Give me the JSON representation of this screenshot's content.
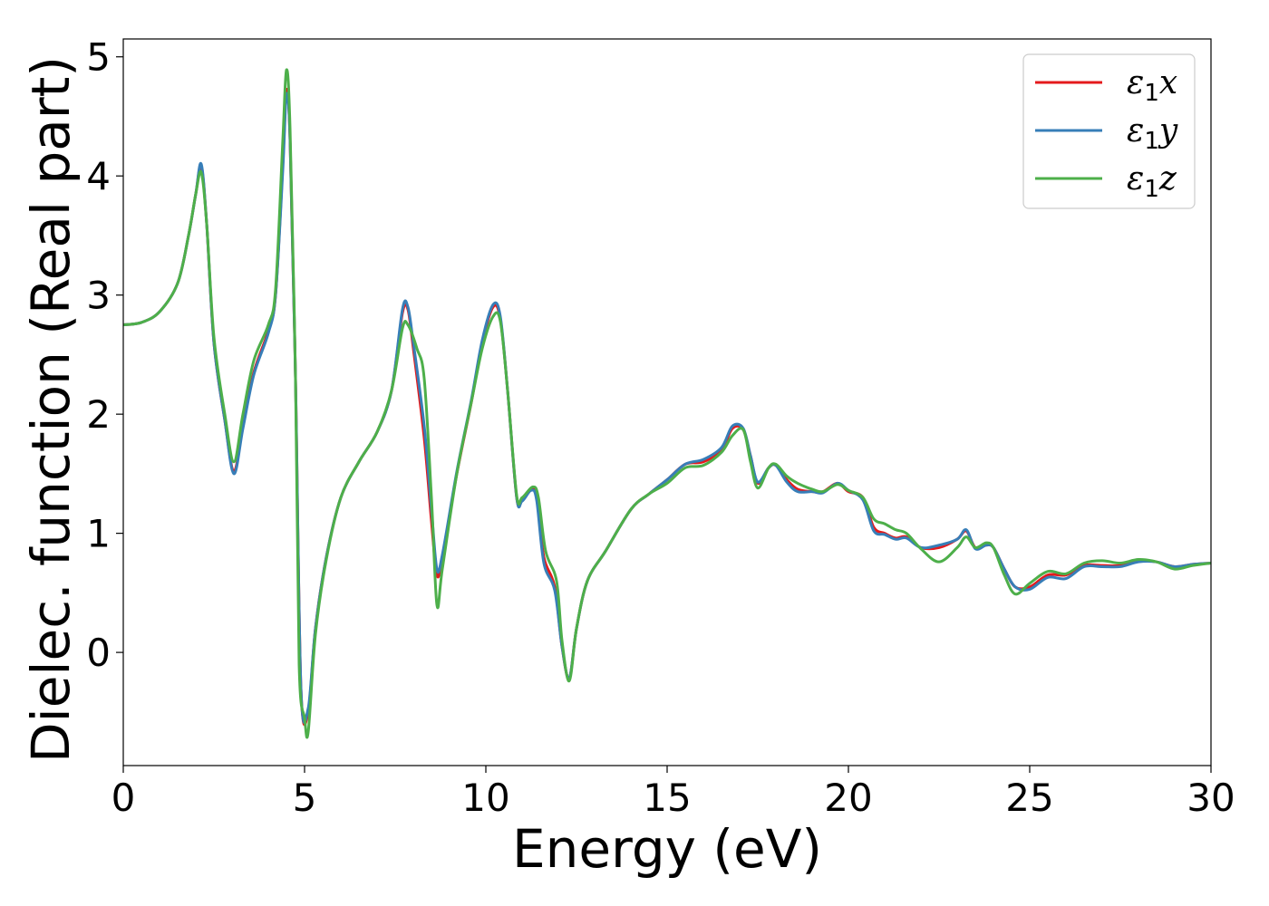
{
  "chart_data": {
    "type": "line",
    "title": "",
    "xlabel": "Energy (eV)",
    "ylabel": "Dielec. function (Real part)",
    "xlim": [
      0,
      30
    ],
    "ylim": [
      -0.95,
      5.15
    ],
    "xticks": [
      0,
      5,
      10,
      15,
      20,
      25,
      30
    ],
    "yticks": [
      0,
      1,
      2,
      3,
      4,
      5
    ],
    "grid": false,
    "legend_position": "top-right",
    "series": [
      {
        "name": "ε1x",
        "sym": "ε",
        "sub": "1",
        "comp": "x",
        "color": "#e41a1c",
        "points": [
          [
            0,
            2.75
          ],
          [
            0.5,
            2.77
          ],
          [
            1.0,
            2.86
          ],
          [
            1.5,
            3.1
          ],
          [
            1.8,
            3.5
          ],
          [
            2.0,
            3.85
          ],
          [
            2.15,
            4.08
          ],
          [
            2.3,
            3.6
          ],
          [
            2.5,
            2.6
          ],
          [
            2.8,
            1.95
          ],
          [
            3.05,
            1.52
          ],
          [
            3.3,
            1.9
          ],
          [
            3.6,
            2.35
          ],
          [
            4.0,
            2.7
          ],
          [
            4.2,
            3.0
          ],
          [
            4.4,
            4.1
          ],
          [
            4.5,
            4.72
          ],
          [
            4.6,
            4.3
          ],
          [
            4.75,
            2.3
          ],
          [
            4.9,
            -0.3
          ],
          [
            5.1,
            -0.5
          ],
          [
            5.3,
            0.2
          ],
          [
            5.6,
            0.8
          ],
          [
            6.0,
            1.3
          ],
          [
            6.5,
            1.6
          ],
          [
            7.0,
            1.85
          ],
          [
            7.4,
            2.2
          ],
          [
            7.7,
            2.85
          ],
          [
            7.85,
            2.88
          ],
          [
            8.0,
            2.55
          ],
          [
            8.3,
            1.8
          ],
          [
            8.5,
            1.1
          ],
          [
            8.65,
            0.65
          ],
          [
            8.8,
            0.8
          ],
          [
            9.2,
            1.5
          ],
          [
            9.6,
            2.1
          ],
          [
            9.9,
            2.6
          ],
          [
            10.2,
            2.9
          ],
          [
            10.4,
            2.8
          ],
          [
            10.6,
            2.2
          ],
          [
            10.85,
            1.3
          ],
          [
            11.0,
            1.28
          ],
          [
            11.25,
            1.37
          ],
          [
            11.4,
            1.3
          ],
          [
            11.6,
            0.8
          ],
          [
            11.9,
            0.55
          ],
          [
            12.1,
            0.05
          ],
          [
            12.3,
            -0.22
          ],
          [
            12.5,
            0.2
          ],
          [
            12.8,
            0.6
          ],
          [
            13.3,
            0.85
          ],
          [
            14.0,
            1.2
          ],
          [
            14.5,
            1.33
          ],
          [
            15.0,
            1.45
          ],
          [
            15.5,
            1.58
          ],
          [
            16.0,
            1.6
          ],
          [
            16.5,
            1.7
          ],
          [
            16.8,
            1.88
          ],
          [
            17.1,
            1.87
          ],
          [
            17.3,
            1.65
          ],
          [
            17.5,
            1.42
          ],
          [
            17.8,
            1.55
          ],
          [
            18.0,
            1.57
          ],
          [
            18.3,
            1.45
          ],
          [
            18.6,
            1.37
          ],
          [
            19.0,
            1.35
          ],
          [
            19.3,
            1.35
          ],
          [
            19.7,
            1.42
          ],
          [
            20.0,
            1.35
          ],
          [
            20.4,
            1.3
          ],
          [
            20.7,
            1.05
          ],
          [
            21.0,
            1.0
          ],
          [
            21.3,
            0.96
          ],
          [
            21.6,
            0.97
          ],
          [
            22.0,
            0.88
          ],
          [
            22.5,
            0.88
          ],
          [
            23.0,
            0.95
          ],
          [
            23.25,
            1.02
          ],
          [
            23.5,
            0.88
          ],
          [
            23.8,
            0.9
          ],
          [
            24.0,
            0.88
          ],
          [
            24.3,
            0.7
          ],
          [
            24.6,
            0.55
          ],
          [
            25.0,
            0.55
          ],
          [
            25.5,
            0.65
          ],
          [
            26.0,
            0.65
          ],
          [
            26.5,
            0.73
          ],
          [
            27.0,
            0.73
          ],
          [
            27.5,
            0.73
          ],
          [
            28.0,
            0.77
          ],
          [
            28.5,
            0.76
          ],
          [
            29.0,
            0.72
          ],
          [
            29.5,
            0.74
          ],
          [
            30.0,
            0.75
          ]
        ]
      },
      {
        "name": "ε1y",
        "sym": "ε",
        "sub": "1",
        "comp": "y",
        "color": "#377eb8",
        "points": [
          [
            0,
            2.75
          ],
          [
            0.5,
            2.77
          ],
          [
            1.0,
            2.86
          ],
          [
            1.5,
            3.1
          ],
          [
            1.8,
            3.5
          ],
          [
            2.0,
            3.85
          ],
          [
            2.15,
            4.1
          ],
          [
            2.3,
            3.6
          ],
          [
            2.5,
            2.6
          ],
          [
            2.8,
            1.95
          ],
          [
            3.05,
            1.5
          ],
          [
            3.3,
            1.88
          ],
          [
            3.6,
            2.33
          ],
          [
            4.0,
            2.68
          ],
          [
            4.2,
            3.0
          ],
          [
            4.4,
            4.05
          ],
          [
            4.5,
            4.68
          ],
          [
            4.6,
            4.3
          ],
          [
            4.75,
            2.3
          ],
          [
            4.9,
            -0.3
          ],
          [
            5.1,
            -0.47
          ],
          [
            5.3,
            0.2
          ],
          [
            5.6,
            0.8
          ],
          [
            6.0,
            1.3
          ],
          [
            6.5,
            1.6
          ],
          [
            7.0,
            1.85
          ],
          [
            7.4,
            2.2
          ],
          [
            7.7,
            2.88
          ],
          [
            7.85,
            2.9
          ],
          [
            8.0,
            2.6
          ],
          [
            8.3,
            1.9
          ],
          [
            8.5,
            1.2
          ],
          [
            8.65,
            0.7
          ],
          [
            8.8,
            0.82
          ],
          [
            9.2,
            1.52
          ],
          [
            9.6,
            2.12
          ],
          [
            9.9,
            2.62
          ],
          [
            10.2,
            2.92
          ],
          [
            10.4,
            2.82
          ],
          [
            10.6,
            2.2
          ],
          [
            10.85,
            1.3
          ],
          [
            11.0,
            1.27
          ],
          [
            11.25,
            1.36
          ],
          [
            11.4,
            1.28
          ],
          [
            11.6,
            0.75
          ],
          [
            11.9,
            0.52
          ],
          [
            12.1,
            0.05
          ],
          [
            12.3,
            -0.22
          ],
          [
            12.5,
            0.2
          ],
          [
            12.8,
            0.6
          ],
          [
            13.3,
            0.85
          ],
          [
            14.0,
            1.2
          ],
          [
            14.5,
            1.33
          ],
          [
            15.0,
            1.45
          ],
          [
            15.5,
            1.58
          ],
          [
            16.0,
            1.62
          ],
          [
            16.5,
            1.72
          ],
          [
            16.8,
            1.9
          ],
          [
            17.1,
            1.88
          ],
          [
            17.3,
            1.65
          ],
          [
            17.5,
            1.43
          ],
          [
            17.8,
            1.55
          ],
          [
            18.0,
            1.57
          ],
          [
            18.3,
            1.43
          ],
          [
            18.6,
            1.35
          ],
          [
            19.0,
            1.35
          ],
          [
            19.3,
            1.34
          ],
          [
            19.7,
            1.42
          ],
          [
            20.0,
            1.36
          ],
          [
            20.4,
            1.28
          ],
          [
            20.7,
            1.02
          ],
          [
            21.0,
            0.99
          ],
          [
            21.3,
            0.95
          ],
          [
            21.6,
            0.96
          ],
          [
            22.0,
            0.88
          ],
          [
            22.5,
            0.9
          ],
          [
            23.0,
            0.95
          ],
          [
            23.25,
            1.03
          ],
          [
            23.5,
            0.87
          ],
          [
            23.8,
            0.9
          ],
          [
            24.0,
            0.88
          ],
          [
            24.3,
            0.7
          ],
          [
            24.6,
            0.55
          ],
          [
            25.0,
            0.53
          ],
          [
            25.5,
            0.63
          ],
          [
            26.0,
            0.62
          ],
          [
            26.5,
            0.72
          ],
          [
            27.0,
            0.72
          ],
          [
            27.5,
            0.72
          ],
          [
            28.0,
            0.76
          ],
          [
            28.5,
            0.76
          ],
          [
            29.0,
            0.72
          ],
          [
            29.5,
            0.74
          ],
          [
            30.0,
            0.75
          ]
        ]
      },
      {
        "name": "ε1z",
        "sym": "ε",
        "sub": "1",
        "comp": "z",
        "color": "#4daf4a",
        "points": [
          [
            0,
            2.75
          ],
          [
            0.5,
            2.77
          ],
          [
            1.0,
            2.86
          ],
          [
            1.5,
            3.1
          ],
          [
            1.8,
            3.5
          ],
          [
            2.0,
            3.85
          ],
          [
            2.15,
            4.03
          ],
          [
            2.3,
            3.6
          ],
          [
            2.5,
            2.65
          ],
          [
            2.8,
            2.0
          ],
          [
            3.05,
            1.6
          ],
          [
            3.3,
            2.0
          ],
          [
            3.6,
            2.45
          ],
          [
            4.0,
            2.75
          ],
          [
            4.2,
            3.05
          ],
          [
            4.4,
            4.3
          ],
          [
            4.5,
            4.89
          ],
          [
            4.6,
            4.4
          ],
          [
            4.75,
            2.3
          ],
          [
            4.85,
            -0.1
          ],
          [
            5.0,
            -0.55
          ],
          [
            5.1,
            -0.67
          ],
          [
            5.3,
            0.15
          ],
          [
            5.6,
            0.78
          ],
          [
            6.0,
            1.3
          ],
          [
            6.5,
            1.6
          ],
          [
            7.0,
            1.85
          ],
          [
            7.4,
            2.2
          ],
          [
            7.7,
            2.72
          ],
          [
            7.85,
            2.75
          ],
          [
            8.1,
            2.55
          ],
          [
            8.3,
            2.3
          ],
          [
            8.5,
            1.3
          ],
          [
            8.65,
            0.4
          ],
          [
            8.8,
            0.7
          ],
          [
            9.2,
            1.5
          ],
          [
            9.6,
            2.1
          ],
          [
            9.9,
            2.55
          ],
          [
            10.2,
            2.82
          ],
          [
            10.4,
            2.78
          ],
          [
            10.6,
            2.2
          ],
          [
            10.85,
            1.32
          ],
          [
            11.0,
            1.3
          ],
          [
            11.3,
            1.39
          ],
          [
            11.45,
            1.3
          ],
          [
            11.65,
            0.85
          ],
          [
            11.95,
            0.6
          ],
          [
            12.1,
            0.1
          ],
          [
            12.3,
            -0.24
          ],
          [
            12.5,
            0.2
          ],
          [
            12.8,
            0.6
          ],
          [
            13.3,
            0.85
          ],
          [
            14.0,
            1.2
          ],
          [
            14.5,
            1.33
          ],
          [
            15.0,
            1.42
          ],
          [
            15.5,
            1.55
          ],
          [
            16.0,
            1.57
          ],
          [
            16.5,
            1.68
          ],
          [
            16.8,
            1.82
          ],
          [
            17.1,
            1.87
          ],
          [
            17.3,
            1.6
          ],
          [
            17.5,
            1.38
          ],
          [
            17.8,
            1.55
          ],
          [
            18.0,
            1.58
          ],
          [
            18.3,
            1.48
          ],
          [
            18.6,
            1.42
          ],
          [
            19.0,
            1.37
          ],
          [
            19.3,
            1.35
          ],
          [
            19.7,
            1.41
          ],
          [
            20.0,
            1.36
          ],
          [
            20.4,
            1.3
          ],
          [
            20.7,
            1.12
          ],
          [
            21.0,
            1.08
          ],
          [
            21.3,
            1.03
          ],
          [
            21.6,
            1.0
          ],
          [
            22.0,
            0.87
          ],
          [
            22.5,
            0.76
          ],
          [
            23.0,
            0.88
          ],
          [
            23.25,
            0.97
          ],
          [
            23.5,
            0.88
          ],
          [
            23.8,
            0.92
          ],
          [
            24.0,
            0.88
          ],
          [
            24.3,
            0.65
          ],
          [
            24.6,
            0.49
          ],
          [
            25.0,
            0.58
          ],
          [
            25.5,
            0.68
          ],
          [
            26.0,
            0.66
          ],
          [
            26.5,
            0.75
          ],
          [
            27.0,
            0.77
          ],
          [
            27.5,
            0.75
          ],
          [
            28.0,
            0.78
          ],
          [
            28.5,
            0.76
          ],
          [
            29.0,
            0.7
          ],
          [
            29.5,
            0.73
          ],
          [
            30.0,
            0.75
          ]
        ]
      }
    ]
  }
}
